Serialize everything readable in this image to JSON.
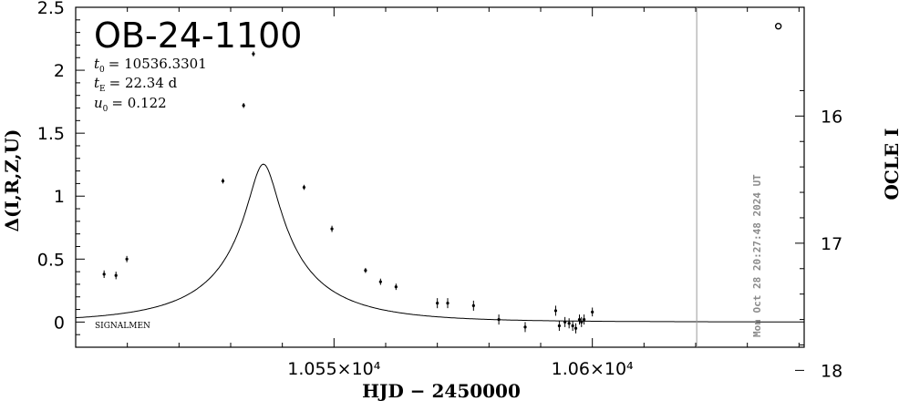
{
  "chart_data": {
    "type": "scatter",
    "title": "OB-24-1100",
    "parameters": {
      "t0_label": "t",
      "t0_sub": "0",
      "t0_value": "= 10536.3301",
      "tE_label": "t",
      "tE_sub": "E",
      "tE_value": "= 22.34 d",
      "u0_label": "u",
      "u0_sub": "0",
      "u0_value": "= 0.122"
    },
    "xlabel": "HJD − 2450000",
    "ylabel": "Δ(I,R,Z,U)",
    "y2label": "OCLE I",
    "xlim": [
      10500,
      10641
    ],
    "ylim": [
      -0.2,
      2.5
    ],
    "y2_ticks": [
      "16",
      "17",
      "18"
    ],
    "y2_tick_values": [
      16,
      17,
      18
    ],
    "y2_mag_ref": {
      "mag_at_delta_zero": 17.62,
      "slope": 1.01
    },
    "x_tick_labels": [
      "1.055×10⁴",
      "1.06×10⁴"
    ],
    "x_tick_values": [
      10550,
      10600
    ],
    "y_ticks": [
      "0",
      "0.5",
      "1",
      "1.5",
      "2",
      "2.5"
    ],
    "y_tick_values": [
      0,
      0.5,
      1,
      1.5,
      2,
      2.5
    ],
    "model": {
      "t0": 10536.3301,
      "tE": 22.34,
      "u0": 0.122
    },
    "points": [
      {
        "x": 10505.5,
        "y": 0.38,
        "err": 0.03
      },
      {
        "x": 10507.8,
        "y": 0.37,
        "err": 0.03
      },
      {
        "x": 10509.9,
        "y": 0.5,
        "err": 0.025
      },
      {
        "x": 10528.5,
        "y": 1.12,
        "err": 0.02
      },
      {
        "x": 10532.5,
        "y": 1.72,
        "err": 0.02
      },
      {
        "x": 10534.4,
        "y": 2.13,
        "err": 0.02
      },
      {
        "x": 10544.2,
        "y": 1.07,
        "err": 0.02
      },
      {
        "x": 10549.6,
        "y": 0.74,
        "err": 0.025
      },
      {
        "x": 10556.1,
        "y": 0.41,
        "err": 0.02
      },
      {
        "x": 10559.0,
        "y": 0.32,
        "err": 0.025
      },
      {
        "x": 10562.0,
        "y": 0.28,
        "err": 0.025
      },
      {
        "x": 10570.0,
        "y": 0.15,
        "err": 0.04
      },
      {
        "x": 10572.0,
        "y": 0.15,
        "err": 0.04
      },
      {
        "x": 10577.0,
        "y": 0.13,
        "err": 0.04
      },
      {
        "x": 10581.9,
        "y": 0.02,
        "err": 0.04
      },
      {
        "x": 10587.0,
        "y": -0.04,
        "err": 0.04
      },
      {
        "x": 10592.9,
        "y": 0.09,
        "err": 0.04
      },
      {
        "x": 10593.6,
        "y": -0.03,
        "err": 0.04
      },
      {
        "x": 10594.7,
        "y": 0.0,
        "err": 0.04
      },
      {
        "x": 10595.5,
        "y": -0.01,
        "err": 0.04
      },
      {
        "x": 10596.2,
        "y": -0.03,
        "err": 0.04
      },
      {
        "x": 10596.8,
        "y": -0.05,
        "err": 0.04
      },
      {
        "x": 10597.5,
        "y": 0.02,
        "err": 0.04
      },
      {
        "x": 10597.9,
        "y": 0.0,
        "err": 0.04
      },
      {
        "x": 10598.4,
        "y": 0.02,
        "err": 0.04
      },
      {
        "x": 10600.0,
        "y": 0.08,
        "err": 0.035
      }
    ],
    "open_marker": {
      "x": 10636.0,
      "y": 2.35
    },
    "date_line_x": 10620.2,
    "date_stamp": "Mon Oct 28 20:27:48 2024 UT",
    "note": "SIGNALMEN",
    "grid": false,
    "legend": "none"
  }
}
